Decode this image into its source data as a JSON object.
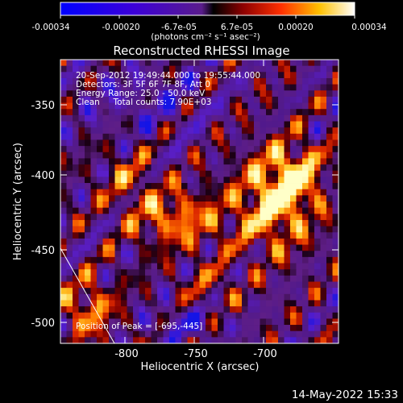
{
  "colorbar": {
    "ticks": [
      "-0.00034",
      "-0.00020",
      "-6.7e-05",
      "6.7e-05",
      "0.00020",
      "0.00034"
    ],
    "unit_label": "(photons cm⁻² s⁻¹ asec⁻²)",
    "range": [
      -0.00034,
      0.00034
    ]
  },
  "chart_data": {
    "type": "heatmap",
    "title": "Reconstructed RHESSI Image",
    "xlabel": "Heliocentric X (arcsec)",
    "ylabel": "Heliocentric Y (arcsec)",
    "xlim": [
      -845,
      -645
    ],
    "ylim": [
      -510,
      -310
    ],
    "xticks": [
      "-800",
      "-750",
      "-700"
    ],
    "yticks": [
      "-350",
      "-400",
      "-450",
      "-500"
    ],
    "info_lines": [
      "20-Sep-2012 19:49:44.000 to 19:55:44.000",
      "Detectors: 3F 5F 6F 7F 8F, Att 0",
      "Energy Range: 25.0 - 50.0 keV",
      "Clean     Total counts: 7.90E+03"
    ],
    "peak_label": "Position of Peak = [-695,-445]",
    "peak": [
      -695,
      -445
    ],
    "colormap": "blue-purple-red-yellow-white"
  },
  "footer": {
    "date": "14-May-2022 15:33"
  }
}
